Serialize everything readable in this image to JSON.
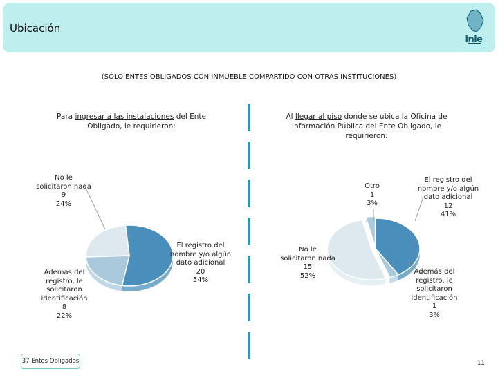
{
  "header": {
    "title": "Ubicación",
    "logo_text": "inie"
  },
  "subtitle": "(SÓLO ENTES OBLIGADOS CON INMUEBLE COMPARTIDO CON OTRAS INSTITUCIONES)",
  "footer": {
    "count_label": "37 Entes Obligados",
    "page_number": "11"
  },
  "colors": {
    "header_bg": "#bfeeee",
    "slice_dark": "#4a8fbb",
    "slice_mid": "#aac9dd",
    "slice_light": "#dde9ef",
    "divider": "#2a9aa8"
  },
  "chart_data": [
    {
      "type": "pie",
      "title_parts": [
        "Para ",
        "ingresar a las instalaciones",
        " del Ente Obligado, le requirieron:"
      ],
      "slices": [
        {
          "label": "El registro del nombre y/o algún dato adicional",
          "value": 20,
          "percent": "54%"
        },
        {
          "label": "Además del registro, le solicitaron identificación",
          "value": 8,
          "percent": "22%"
        },
        {
          "label": "No le solicitaron nada",
          "value": 9,
          "percent": "24%"
        }
      ]
    },
    {
      "type": "pie",
      "title_parts": [
        "Al ",
        "llegar al piso",
        " donde se ubica la Oficina de Información Pública del Ente Obligado, le requirieron:"
      ],
      "slices": [
        {
          "label": "El registro del nombre y/o algún dato adicional",
          "value": 12,
          "percent": "41%"
        },
        {
          "label": "Además del registro, le solicitaron identificación",
          "value": 1,
          "percent": "3%"
        },
        {
          "label": "No le solicitaron nada",
          "value": 15,
          "percent": "52%"
        },
        {
          "label": "Otro",
          "value": 1,
          "percent": "3%"
        }
      ]
    }
  ]
}
